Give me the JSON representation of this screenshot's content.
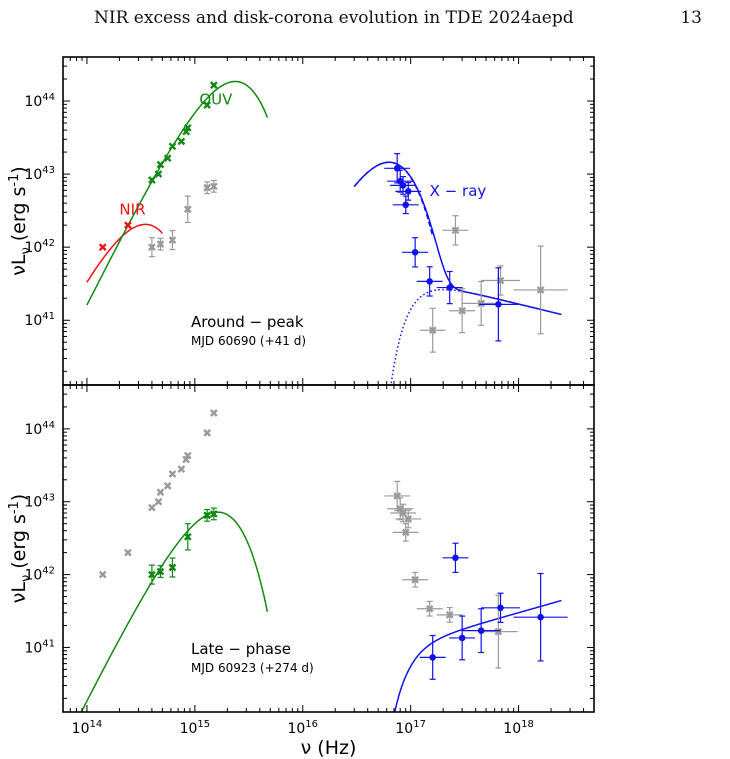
{
  "header": {
    "running_title": "NIR excess and disk-corona evolution in TDE 2024aepd",
    "page_number": "13"
  },
  "colors": {
    "nir": "#ee1111",
    "ouv": "#118811",
    "xray": "#1111ee",
    "archival": "#999999"
  },
  "chart_data": [
    {
      "type": "scatter",
      "panel": "top",
      "xlabel": "ν (Hz)",
      "ylabel": "νL_ν (erg s^-1)",
      "xscale": "log",
      "yscale": "log",
      "xlim": [
        60000000000000.0,
        5e+18
      ],
      "ylim": [
        1.3e+40,
        4e+44
      ],
      "x_ticks": [
        "10^14",
        "10^15",
        "10^16",
        "10^17",
        "10^18"
      ],
      "y_ticks": [
        "10^41",
        "10^42",
        "10^43",
        "10^44"
      ],
      "annotation": "Around − peak",
      "sublabel": "MJD 60690 (+41 d)",
      "labels": [
        {
          "text": "NIR",
          "color": "#ee1111",
          "x": 200000000000000.0,
          "y": 2.8e+42
        },
        {
          "text": "OUV",
          "color": "#118811",
          "x": 1100000000000000.0,
          "y": 9e+43
        },
        {
          "text": "X − ray",
          "color": "#1111ee",
          "x": 1.5e+17,
          "y": 5e+42
        }
      ],
      "series": [
        {
          "name": "NIR",
          "color": "#ee1111",
          "marker": "x",
          "points": [
            [
              140000000000000.0,
              1e+42,
              0
            ],
            [
              240000000000000.0,
              2e+42,
              0
            ]
          ]
        },
        {
          "name": "OUV",
          "color": "#118811",
          "marker": "x",
          "points": [
            [
              400000000000000.0,
              8.3e+42,
              0
            ],
            [
              460000000000000.0,
              1e+43,
              0
            ],
            [
              480000000000000.0,
              1.35e+43,
              0
            ],
            [
              560000000000000.0,
              1.65e+43,
              0
            ],
            [
              620000000000000.0,
              2.4e+43,
              0
            ],
            [
              750000000000000.0,
              2.8e+43,
              0
            ],
            [
              830000000000000.0,
              3.8e+43,
              0
            ],
            [
              860000000000000.0,
              4.3e+43,
              0
            ],
            [
              1300000000000000.0,
              8.8e+43,
              0
            ],
            [
              1500000000000000.0,
              1.65e+44,
              0
            ]
          ]
        },
        {
          "name": "archival",
          "color": "#999999",
          "marker": "x",
          "points": [
            [
              400000000000000.0,
              1e+42,
              0.13
            ],
            [
              480000000000000.0,
              1.1e+42,
              0.08
            ],
            [
              620000000000000.0,
              1.25e+42,
              0.13
            ],
            [
              860000000000000.0,
              3.3e+42,
              0.18
            ],
            [
              1300000000000000.0,
              6.5e+42,
              0.08
            ],
            [
              1500000000000000.0,
              6.8e+42,
              0.08
            ],
            [
              2.6e+17,
              1.7e+42,
              0.2
            ],
            [
              1.6e+17,
              7.3e+40,
              0.3
            ],
            [
              3e+17,
              1.35e+41,
              0.3
            ],
            [
              4.5e+17,
              1.7e+41,
              0.3
            ],
            [
              6.8e+17,
              3.5e+41,
              0.2
            ],
            [
              1.6e+18,
              2.6e+41,
              0.6
            ]
          ]
        },
        {
          "name": "X-ray",
          "color": "#1111ee",
          "marker": "o",
          "points": [
            [
              7.5e+16,
              1.2e+43,
              0.2
            ],
            [
              8e+16,
              8e+42,
              0.15
            ],
            [
              8.5e+16,
              7e+42,
              0.12
            ],
            [
              9e+16,
              3.8e+42,
              0.12
            ],
            [
              9.5e+16,
              5.8e+42,
              0.12
            ],
            [
              1.1e+17,
              8.5e+41,
              0.2
            ],
            [
              1.5e+17,
              3.4e+41,
              0.2
            ],
            [
              2.3e+17,
              2.8e+41,
              0.22
            ],
            [
              6.5e+17,
              1.65e+41,
              0.5
            ]
          ]
        }
      ],
      "models": [
        {
          "name": "NIR blackbody",
          "color": "#ee1111",
          "style": "solid",
          "T": 4260.0,
          "peak": 2.05e+42,
          "xrange": [
            100000000000000.0,
            500000000000000.0
          ]
        },
        {
          "name": "OUV blackbody",
          "color": "#118811",
          "style": "solid",
          "T": 29000.0,
          "peak": 1.85e+44,
          "xrange": [
            100000000000000.0,
            4700000000000000.0
          ]
        },
        {
          "name": "X-ray disk",
          "color": "#1111ee",
          "style": "dashed",
          "T": 770000.0,
          "peak": 1.45e+43,
          "xrange": [
            3e+16,
            1.6e+17
          ]
        },
        {
          "name": "X-ray power law",
          "color": "#1111ee",
          "style": "dotted",
          "pl_norm": 3.3e+41,
          "pl_x0": 1.5e+17,
          "pl_slope": -0.36,
          "cutoff": 1e+17,
          "xrange": [
            6e+16,
            2.5e+18
          ]
        },
        {
          "name": "X-ray total",
          "color": "#1111ee",
          "style": "solid",
          "xrange": [
            3e+16,
            2.5e+18
          ]
        }
      ]
    },
    {
      "type": "scatter",
      "panel": "bottom",
      "xlabel": "ν (Hz)",
      "ylabel": "νL_ν (erg s^-1)",
      "xscale": "log",
      "yscale": "log",
      "xlim": [
        60000000000000.0,
        5e+18
      ],
      "ylim": [
        1.3e+40,
        4e+44
      ],
      "x_ticks": [
        "10^14",
        "10^15",
        "10^16",
        "10^17",
        "10^18"
      ],
      "y_ticks": [
        "10^41",
        "10^42",
        "10^43",
        "10^44"
      ],
      "annotation": "Late − phase",
      "sublabel": "MJD 60923 (+274 d)",
      "series": [
        {
          "name": "archival",
          "color": "#999999",
          "marker": "x",
          "points": [
            [
              140000000000000.0,
              1e+42,
              0
            ],
            [
              240000000000000.0,
              2e+42,
              0
            ],
            [
              400000000000000.0,
              8.3e+42,
              0
            ],
            [
              460000000000000.0,
              1e+43,
              0
            ],
            [
              480000000000000.0,
              1.35e+43,
              0
            ],
            [
              560000000000000.0,
              1.65e+43,
              0
            ],
            [
              620000000000000.0,
              2.4e+43,
              0
            ],
            [
              750000000000000.0,
              2.8e+43,
              0
            ],
            [
              830000000000000.0,
              3.8e+43,
              0
            ],
            [
              860000000000000.0,
              4.3e+43,
              0
            ],
            [
              1300000000000000.0,
              8.8e+43,
              0
            ],
            [
              1500000000000000.0,
              1.65e+44,
              0
            ],
            [
              7.5e+16,
              1.2e+43,
              0.2
            ],
            [
              8e+16,
              8e+42,
              0.15
            ],
            [
              8.5e+16,
              7e+42,
              0.12
            ],
            [
              9e+16,
              3.8e+42,
              0.12
            ],
            [
              9.5e+16,
              5.8e+42,
              0.12
            ],
            [
              1.1e+17,
              8.5e+41,
              0.1
            ],
            [
              1.5e+17,
              3.4e+41,
              0.1
            ],
            [
              2.3e+17,
              2.8e+41,
              0.1
            ],
            [
              6.5e+17,
              1.65e+41,
              0.5
            ]
          ]
        },
        {
          "name": "OUV",
          "color": "#118811",
          "marker": "x",
          "points": [
            [
              400000000000000.0,
              1e+42,
              0.13
            ],
            [
              480000000000000.0,
              1.1e+42,
              0.08
            ],
            [
              620000000000000.0,
              1.25e+42,
              0.13
            ],
            [
              860000000000000.0,
              3.3e+42,
              0.18
            ],
            [
              1300000000000000.0,
              6.5e+42,
              0.08
            ],
            [
              1500000000000000.0,
              6.8e+42,
              0.08
            ]
          ]
        },
        {
          "name": "X-ray",
          "color": "#1111ee",
          "marker": "o",
          "points": [
            [
              2.6e+17,
              1.7e+42,
              0.2
            ],
            [
              1.6e+17,
              7.3e+40,
              0.3
            ],
            [
              3e+17,
              1.35e+41,
              0.3
            ],
            [
              4.5e+17,
              1.7e+41,
              0.3
            ],
            [
              6.8e+17,
              3.5e+41,
              0.2
            ],
            [
              1.6e+18,
              2.6e+41,
              0.6
            ]
          ]
        }
      ],
      "models": [
        {
          "name": "OUV blackbody",
          "color": "#118811",
          "style": "solid",
          "T": 20000.0,
          "peak": 7.2e+42,
          "xrange": [
            80000000000000.0,
            4700000000000000.0
          ]
        },
        {
          "name": "X-ray power law",
          "color": "#1111ee",
          "style": "solid",
          "pl_norm": 3e+41,
          "pl_x0": 1e+18,
          "pl_slope": 0.42,
          "cutoff": 9e+16,
          "xrange": [
            5.5e+16,
            2.5e+18
          ]
        }
      ]
    }
  ]
}
